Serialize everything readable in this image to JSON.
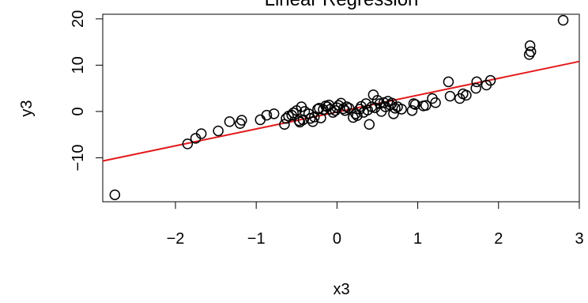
{
  "chart_data": {
    "type": "scatter",
    "title": "Linear Regression",
    "xlabel": "x3",
    "ylabel": "y3",
    "xlim": [
      -2.9,
      3.0
    ],
    "ylim": [
      -19.5,
      21.0
    ],
    "x_ticks": [
      -2,
      -1,
      0,
      1,
      2,
      3
    ],
    "x_tick_labels": [
      "−2",
      "−1",
      "0",
      "1",
      "2",
      "3"
    ],
    "y_ticks": [
      -10,
      0,
      10,
      20
    ],
    "y_tick_labels": [
      "−10",
      "0",
      "10",
      "20"
    ],
    "grid": false,
    "legend": "none",
    "point_color": "#000000",
    "line_color": "#e31a1c",
    "regression_line": {
      "x": [
        -2.9,
        3.0
      ],
      "y": [
        -10.7,
        10.8
      ]
    },
    "series": [
      {
        "x": [
          -2.75,
          -1.85,
          -1.75,
          -1.68,
          -1.47,
          -1.33,
          -1.2,
          -1.18,
          -0.95,
          -0.87,
          -0.78,
          -0.65,
          -0.63,
          -0.6,
          -0.56,
          -0.54,
          -0.5,
          -0.47,
          -0.46,
          -0.44,
          -0.42,
          -0.4,
          -0.35,
          -0.33,
          -0.3,
          -0.28,
          -0.24,
          -0.22,
          -0.2,
          -0.17,
          -0.14,
          -0.12,
          -0.1,
          -0.08,
          -0.05,
          -0.02,
          0.0,
          0.02,
          0.05,
          0.08,
          0.1,
          0.12,
          0.15,
          0.2,
          0.23,
          0.25,
          0.28,
          0.3,
          0.33,
          0.36,
          0.38,
          0.4,
          0.43,
          0.45,
          0.47,
          0.5,
          0.53,
          0.55,
          0.58,
          0.6,
          0.63,
          0.66,
          0.68,
          0.7,
          0.72,
          0.75,
          0.8,
          0.93,
          0.95,
          0.97,
          1.07,
          1.1,
          1.18,
          1.22,
          1.38,
          1.4,
          1.52,
          1.56,
          1.6,
          1.72,
          1.73,
          1.85,
          1.9,
          2.38,
          2.39,
          2.4,
          2.8
        ],
        "y": [
          -18.0,
          -7.0,
          -5.8,
          -4.8,
          -4.2,
          -2.2,
          -2.6,
          -1.9,
          -1.8,
          -0.8,
          -0.5,
          -2.8,
          -1.5,
          -1.0,
          -0.8,
          -0.3,
          0.2,
          -2.0,
          -2.3,
          1.0,
          -1.8,
          0.0,
          -0.5,
          -1.5,
          -2.2,
          -1.2,
          0.5,
          0.7,
          -1.4,
          0.4,
          1.2,
          1.0,
          1.4,
          0.5,
          -0.2,
          0.2,
          0.8,
          1.3,
          1.8,
          0.6,
          0.2,
          1.0,
          0.7,
          -1.3,
          -0.5,
          -0.9,
          0.5,
          1.1,
          -0.2,
          1.7,
          0.3,
          -2.8,
          1.0,
          3.6,
          0.8,
          2.4,
          1.7,
          0.0,
          1.9,
          1.0,
          2.2,
          1.4,
          1.8,
          -0.5,
          0.7,
          1.0,
          0.5,
          0.2,
          1.7,
          1.5,
          1.2,
          1.3,
          2.8,
          1.9,
          6.4,
          3.3,
          2.8,
          3.8,
          3.5,
          5.0,
          6.4,
          5.7,
          6.7,
          12.3,
          14.2,
          12.9,
          19.7
        ]
      }
    ]
  }
}
